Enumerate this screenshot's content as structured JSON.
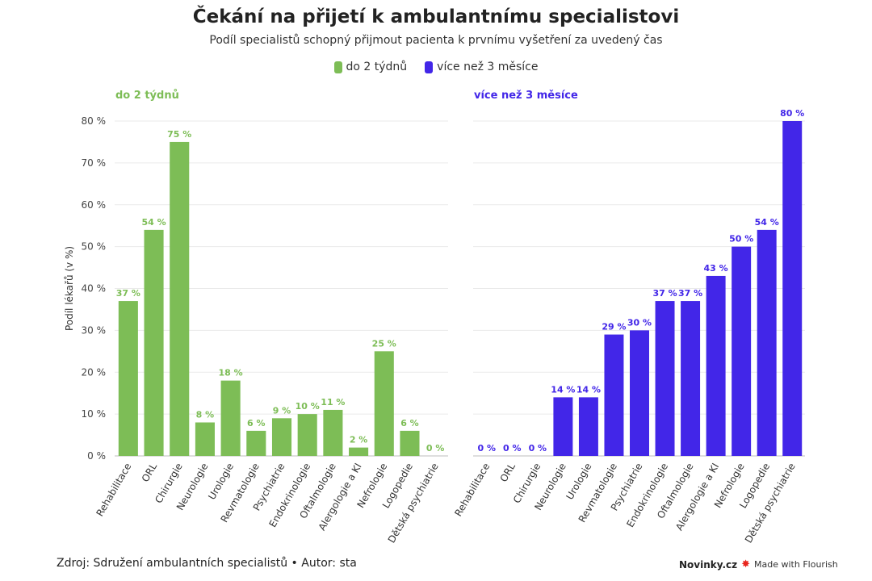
{
  "header": {
    "title": "Čekání na přijetí k ambulantnímu specialistovi",
    "subtitle": "Podíl specialistů schopný přijmout pacienta k prvnímu vyšetření za uvedený čas"
  },
  "legend": [
    {
      "label": "do 2 týdnů",
      "color": "#7dbd56"
    },
    {
      "label": "více než 3 měsíce",
      "color": "#4226e8"
    }
  ],
  "footer": {
    "source": "Zdroj: Sdružení ambulantních specialistů • Autor: sta",
    "brand": "Novinky.cz",
    "credit": "Made with Flourish"
  },
  "chart_data": [
    {
      "type": "bar",
      "title": "do 2 týdnů",
      "ylabel": "Podíl lékařů (v %)",
      "ylim": [
        0,
        80
      ],
      "yticks": [
        0,
        10,
        20,
        30,
        40,
        50,
        60,
        70,
        80
      ],
      "ytick_labels": [
        "0 %",
        "10 %",
        "20 %",
        "30 %",
        "40 %",
        "50 %",
        "60 %",
        "70 %",
        "80 %"
      ],
      "grid": true,
      "color": "#7dbd56",
      "categories": [
        "Rehabilitace",
        "ORL",
        "Chirurgie",
        "Neurologie",
        "Urologie",
        "Revmatologie",
        "Psychiatrie",
        "Endokrinologie",
        "Oftalmologie",
        "Alergologie a KI",
        "Nefrologie",
        "Logopedie",
        "Dětská psychiatrie"
      ],
      "values": [
        37,
        54,
        75,
        8,
        18,
        6,
        9,
        10,
        11,
        2,
        25,
        6,
        0
      ],
      "value_labels": [
        "37 %",
        "54 %",
        "75 %",
        "8 %",
        "18 %",
        "6 %",
        "9 %",
        "10 %",
        "11 %",
        "2 %",
        "25 %",
        "6 %",
        "0 %"
      ]
    },
    {
      "type": "bar",
      "title": "více než 3 měsíce",
      "ylim": [
        0,
        80
      ],
      "grid": true,
      "color": "#4226e8",
      "categories": [
        "Rehabilitace",
        "ORL",
        "Chirurgie",
        "Neurologie",
        "Urologie",
        "Revmatologie",
        "Psychiatrie",
        "Endokrinologie",
        "Oftalmologie",
        "Alergologie a KI",
        "Nefrologie",
        "Logopedie",
        "Dětská psychiatrie"
      ],
      "values": [
        0,
        0,
        0,
        14,
        14,
        29,
        30,
        37,
        37,
        43,
        50,
        54,
        80
      ],
      "value_labels": [
        "0 %",
        "0 %",
        "0 %",
        "14 %",
        "14 %",
        "29 %",
        "30 %",
        "37 %",
        "37 %",
        "43 %",
        "50 %",
        "54 %",
        "80 %"
      ]
    }
  ]
}
